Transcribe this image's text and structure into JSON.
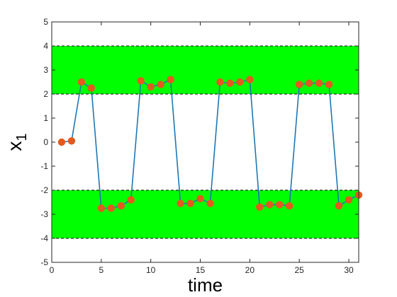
{
  "chart_data": {
    "type": "line",
    "xlabel": "time",
    "ylabel": "x",
    "ylabel_subscript": "1",
    "xlim": [
      0,
      31
    ],
    "ylim": [
      -5,
      5
    ],
    "xticks": [
      0,
      5,
      10,
      15,
      20,
      25,
      30
    ],
    "yticks": [
      -5,
      -4,
      -3,
      -2,
      -1,
      0,
      1,
      2,
      3,
      4,
      5
    ],
    "grid": false,
    "bands": [
      {
        "y_from": 2,
        "y_to": 4,
        "color": "#00ff00"
      },
      {
        "y_from": -4,
        "y_to": -2,
        "color": "#00ff00"
      }
    ],
    "series": [
      {
        "line_color": "#1f77b4",
        "marker_color": "#e35a1e",
        "x": [
          1,
          2,
          3,
          4,
          5,
          6,
          7,
          8,
          9,
          10,
          11,
          12,
          13,
          14,
          15,
          16,
          17,
          18,
          19,
          20,
          21,
          22,
          23,
          24,
          25,
          26,
          27,
          28,
          29,
          30,
          31
        ],
        "y": [
          0,
          0.05,
          2.5,
          2.25,
          -2.75,
          -2.75,
          -2.65,
          -2.4,
          2.55,
          2.3,
          2.4,
          2.6,
          -2.55,
          -2.55,
          -2.35,
          -2.55,
          2.5,
          2.45,
          2.5,
          2.6,
          -2.7,
          -2.6,
          -2.6,
          -2.65,
          2.4,
          2.45,
          2.45,
          2.4,
          -2.65,
          -2.4,
          -2.2
        ]
      }
    ]
  }
}
